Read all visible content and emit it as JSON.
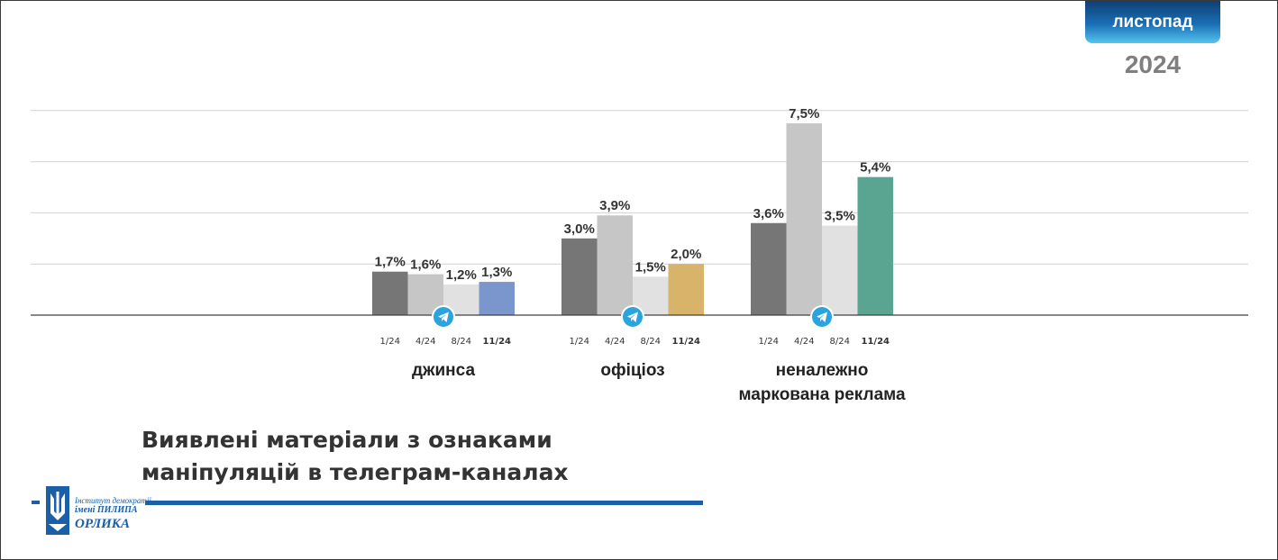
{
  "badge": {
    "month": "листопад",
    "year": "2024"
  },
  "heading": {
    "line1": "Виявлені матеріали з ознаками",
    "line2": "маніпуляцій в телеграм-каналах"
  },
  "logo": {
    "line1": "Інститут демократії",
    "line2": "імені ПИЛИПА",
    "line3": "ОРЛИКА"
  },
  "icons": {
    "group_marker": "telegram-icon",
    "logo_mark": "trident-icon"
  },
  "chart_data": {
    "type": "bar",
    "title": "",
    "xlabel": "",
    "ylabel": "",
    "ylim": [
      0,
      8
    ],
    "grid": true,
    "legend": "none",
    "periods": [
      "1/24",
      "4/24",
      "8/24",
      "11/24"
    ],
    "groups": [
      {
        "name": "джинса",
        "label_lines": [
          "джинса"
        ],
        "values": [
          1.7,
          1.6,
          1.2,
          1.3
        ],
        "labels": [
          "1,7%",
          "1,6%",
          "1,2%",
          "1,3%"
        ],
        "colors": [
          "#767676",
          "#c6c6c6",
          "#e1e1e1",
          "#7b96cc"
        ]
      },
      {
        "name": "офіціоз",
        "label_lines": [
          "офіціоз"
        ],
        "values": [
          3.0,
          3.9,
          1.5,
          2.0
        ],
        "labels": [
          "3,0%",
          "3,9%",
          "1,5%",
          "2,0%"
        ],
        "colors": [
          "#767676",
          "#c6c6c6",
          "#e1e1e1",
          "#d8b46b"
        ]
      },
      {
        "name": "неналежно маркована реклама",
        "label_lines": [
          "неналежно",
          "маркована реклама"
        ],
        "values": [
          3.6,
          7.5,
          3.5,
          5.4
        ],
        "labels": [
          "3,6%",
          "7,5%",
          "3,5%",
          "5,4%"
        ],
        "colors": [
          "#767676",
          "#c6c6c6",
          "#e1e1e1",
          "#5aa592"
        ]
      }
    ]
  }
}
